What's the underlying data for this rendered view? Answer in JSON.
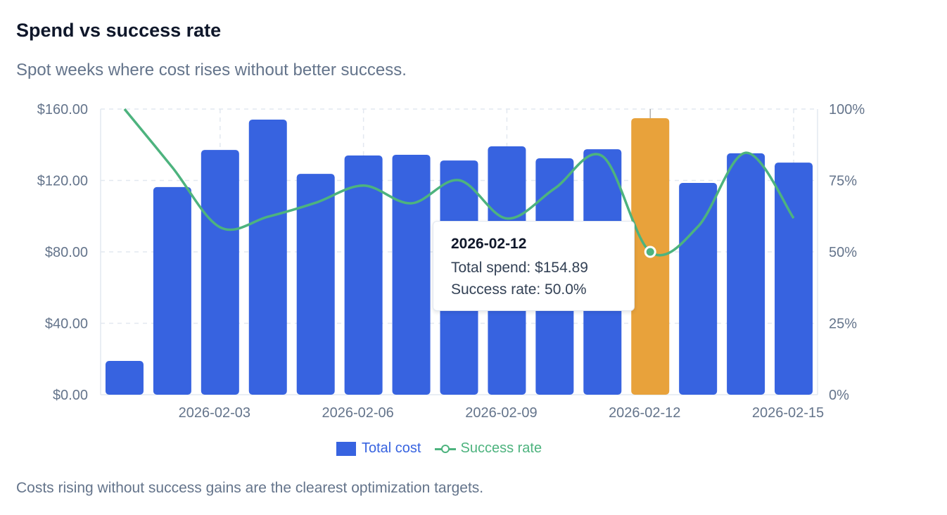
{
  "header": {
    "title": "Spend vs success rate",
    "subtitle": "Spot weeks where cost rises without better success."
  },
  "footer": "Costs rising without success gains are the clearest optimization targets.",
  "tooltip": {
    "date": "2026-02-12",
    "spend_line": "Total spend: $154.89",
    "rate_line": "Success rate: 50.0%"
  },
  "colors": {
    "bar": "#3763e0",
    "highlight": "#e8a23b",
    "line": "#4db37e",
    "grid": "#e2e8f0",
    "axis_text": "#64748b"
  },
  "chart_data": {
    "type": "bar",
    "title": "Spend vs success rate",
    "categories": [
      "2026-02-01",
      "2026-02-02",
      "2026-02-03",
      "2026-02-04",
      "2026-02-05",
      "2026-02-06",
      "2026-02-07",
      "2026-02-08",
      "2026-02-09",
      "2026-02-10",
      "2026-02-11",
      "2026-02-12",
      "2026-02-13",
      "2026-02-14",
      "2026-02-15"
    ],
    "x_tick_labels": [
      "2026-02-03",
      "2026-02-06",
      "2026-02-09",
      "2026-02-12",
      "2026-02-15"
    ],
    "series": [
      {
        "name": "Total cost",
        "type": "bar",
        "axis": "left",
        "values": [
          18.9,
          116.3,
          137.1,
          154.1,
          123.7,
          134.0,
          134.4,
          131.2,
          139.1,
          132.4,
          137.5,
          154.89,
          118.6,
          135.2,
          130.0
        ]
      },
      {
        "name": "Success rate",
        "type": "line",
        "axis": "right",
        "values": [
          100,
          79.6,
          58.6,
          62.3,
          67.2,
          73.2,
          67.0,
          75.1,
          61.7,
          72.2,
          83.5,
          50.0,
          58.9,
          84.7,
          61.8
        ]
      }
    ],
    "highlight_index": 11,
    "y_left": {
      "min": 0,
      "max": 160,
      "ticks": [
        "$0.00",
        "$40.00",
        "$80.00",
        "$120.00",
        "$160.00"
      ]
    },
    "y_right": {
      "min": 0,
      "max": 100,
      "ticks": [
        "0%",
        "25%",
        "50%",
        "75%",
        "100%"
      ]
    },
    "grid": true,
    "legend": {
      "placement": "bottom",
      "items": [
        "Total cost",
        "Success rate"
      ]
    }
  }
}
